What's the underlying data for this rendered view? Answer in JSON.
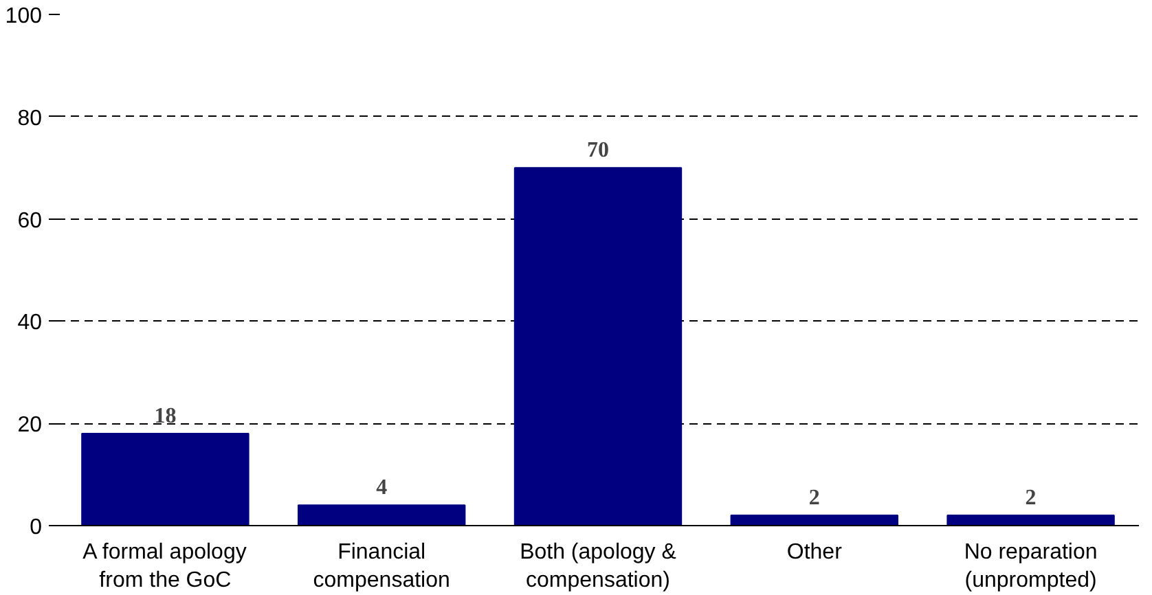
{
  "chart_data": {
    "type": "bar",
    "categories": [
      "A formal apology\nfrom the GoC",
      "Financial\ncompensation",
      "Both (apology &\ncompensation)",
      "Other",
      "No reparation\n(unprompted)"
    ],
    "values": [
      18,
      4,
      70,
      2,
      2
    ],
    "color": "#000080",
    "ylim": [
      0,
      100
    ],
    "yticks": [
      0,
      20,
      40,
      60,
      80,
      100
    ],
    "grid": "y",
    "data_labels": true
  }
}
